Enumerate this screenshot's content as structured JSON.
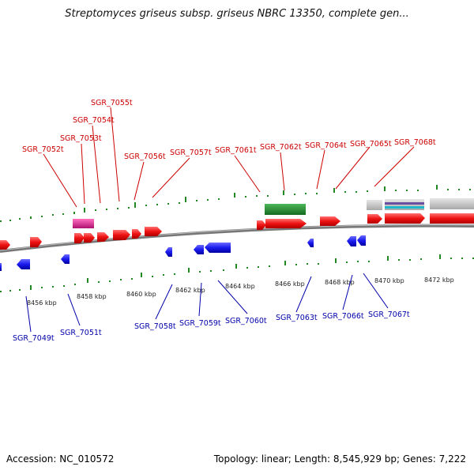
{
  "title": "Streptomyces griseus subsp. griseus NBRC 13350, complete gen...",
  "accession": "Accession: NC_010572",
  "summary": "Topology: linear; Length: 8,545,929 bp; Genes: 7,222",
  "colors": {
    "forward_gene": "#ee1111",
    "reverse_gene": "#1a1aee",
    "forward_label": "#cc0000",
    "reverse_label": "#0000aa",
    "ruler": "#228822",
    "backbone": "#777777",
    "rrna_green": "#1f8a2e",
    "pseudo_magenta": "#e0208f",
    "gray_feature": "#c8c8c8",
    "purple_feature": "#6a4fa0",
    "cyan_feature": "#22b8c8"
  },
  "scale_ticks": [
    "8456 kbp",
    "8458 kbp",
    "8460 kbp",
    "8462 kbp",
    "8464 kbp",
    "8466 kbp",
    "8468 kbp",
    "8470 kbp",
    "8472 kbp"
  ],
  "forward_labels": [
    "SGR_7052t",
    "SGR_7053t",
    "SGR_7054t",
    "SGR_7055t",
    "SGR_7056t",
    "SGR_7057t",
    "SGR_7061t",
    "SGR_7062t",
    "SGR_7064t",
    "SGR_7065t",
    "SGR_7068t"
  ],
  "reverse_labels": [
    "SGR_7049t",
    "SGR_7051t",
    "SGR_7058t",
    "SGR_7059t",
    "SGR_7060t",
    "SGR_7063t",
    "SGR_7066t",
    "SGR_7067t"
  ]
}
